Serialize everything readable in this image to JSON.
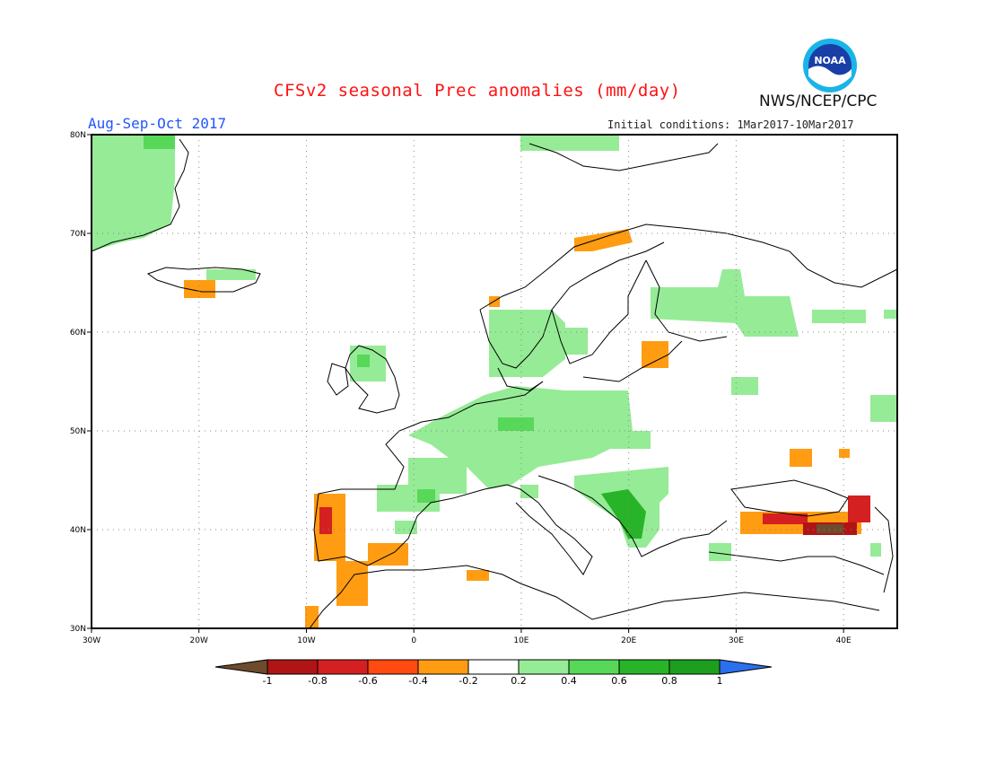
{
  "header": {
    "title": "CFSv2 seasonal Prec anomalies (mm/day)",
    "period": "Aug-Sep-Oct 2017",
    "initial_conditions": "Initial conditions: 1Mar2017-10Mar2017",
    "agency": "NWS/NCEP/CPC",
    "logo_text": "NOAA"
  },
  "map": {
    "lon_range": [
      -30,
      45
    ],
    "lat_range": [
      30,
      80
    ],
    "x_ticks": [
      "30W",
      "20W",
      "10W",
      "0",
      "10E",
      "20E",
      "30E",
      "40E"
    ],
    "y_ticks": [
      "30N",
      "40N",
      "50N",
      "60N",
      "70N",
      "80N"
    ],
    "gridlines": true
  },
  "colorbar": {
    "labels": [
      "-1",
      "-0.8",
      "-0.6",
      "-0.4",
      "-0.2",
      "0.2",
      "0.4",
      "0.6",
      "0.8",
      "1"
    ],
    "colors": [
      "#6e4b2c",
      "#b01414",
      "#d42020",
      "#ff4a10",
      "#ff9c12",
      "#ffffff",
      "#96eb96",
      "#58d858",
      "#28b428",
      "#1e9e1e",
      "#2a6ff0"
    ]
  },
  "colors": {
    "title": "#ff1111",
    "period": "#2255ff",
    "coastline": "#000000",
    "grid": "#888888",
    "wet_light": "#96eb96",
    "wet_mid": "#58d858",
    "wet_strong": "#28b428",
    "dry_orange": "#ff9c12",
    "dry_red": "#d42020"
  }
}
